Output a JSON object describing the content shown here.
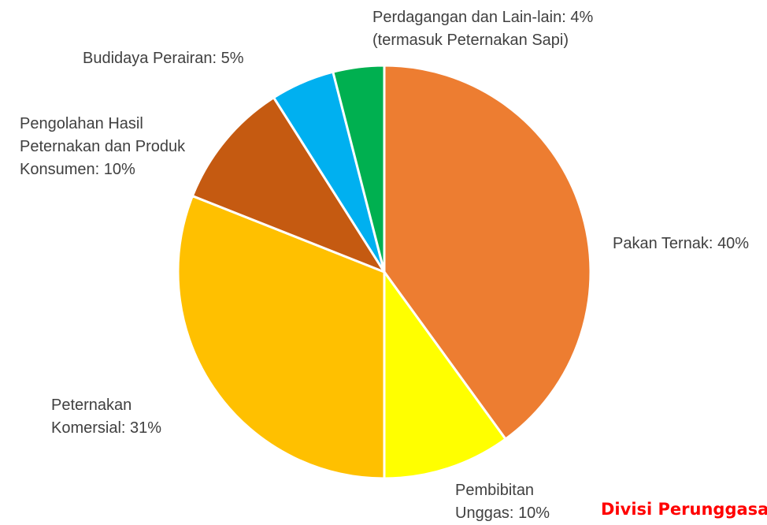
{
  "chart_data": {
    "type": "pie",
    "categories": [
      "Pakan Ternak:",
      "Pembibitan Unggas:",
      "Peternakan Komersial:",
      "Pengolahan Hasil Peternakan dan Produk Konsumen:",
      "Budidaya Perairan:",
      "Perdagangan dan Lain-lain:"
    ],
    "values": [
      40,
      10,
      31,
      10,
      5,
      4
    ],
    "value_labels": [
      "40%",
      "10%",
      "31%",
      "10%",
      "5%",
      "4%"
    ],
    "colors": [
      "#ED7D31",
      "#FFFF00",
      "#FFC000",
      "#C55A11",
      "#00B0F0",
      "#00B050"
    ],
    "annotations": {
      "5": "(termasuk Peternakan Sapi)"
    },
    "footer": "Divisi Perunggasan"
  }
}
